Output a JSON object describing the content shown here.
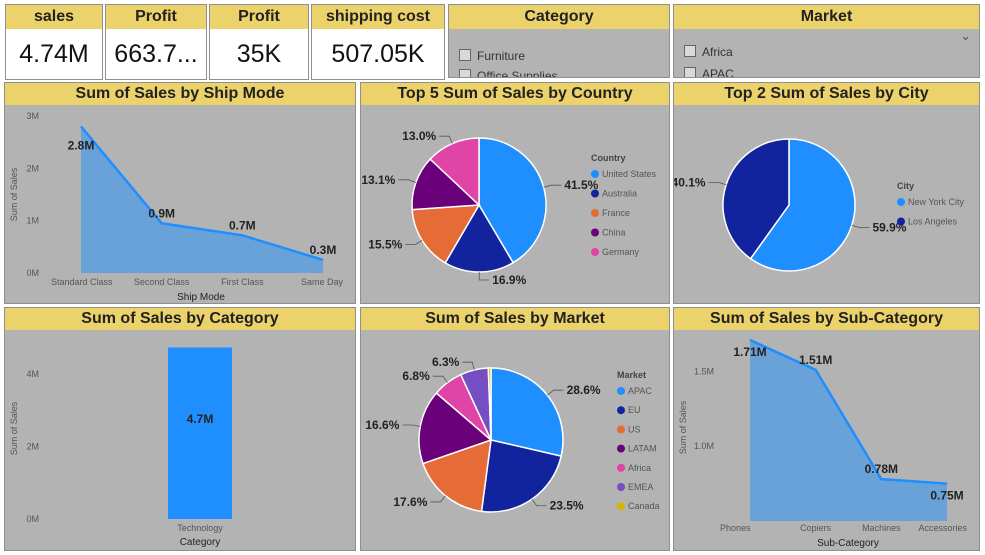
{
  "cards": [
    {
      "title": "sales",
      "value": "4.74M"
    },
    {
      "title": "Profit",
      "value": "663.7..."
    },
    {
      "title": "Profit",
      "value": "35K"
    },
    {
      "title": "shipping cost",
      "value": "507.05K"
    }
  ],
  "slicers": {
    "category": {
      "title": "Category",
      "items": [
        "Furniture",
        "Office Supplies"
      ]
    },
    "market": {
      "title": "Market",
      "items": [
        "Africa",
        "APAC"
      ]
    }
  },
  "panels": {
    "ship_mode": {
      "title": "Sum of Sales by Ship Mode"
    },
    "country": {
      "title": "Top 5 Sum of Sales by Country"
    },
    "city": {
      "title": "Top 2 Sum of Sales by City"
    },
    "category": {
      "title": "Sum of Sales by Category"
    },
    "market": {
      "title": "Sum of Sales by Market"
    },
    "subcategory": {
      "title": "Sum of Sales by Sub-Category"
    }
  },
  "chart_data": [
    {
      "type": "area",
      "title": "Sum of Sales by Ship Mode",
      "xlabel": "Ship Mode",
      "ylabel": "Sum of Sales",
      "categories": [
        "Standard Class",
        "Second Class",
        "First Class",
        "Same Day"
      ],
      "values": [
        2.8,
        0.95,
        0.72,
        0.25
      ],
      "data_labels": [
        "2.8M",
        "0.9M",
        "0.7M",
        "0.3M"
      ],
      "ylim": [
        0,
        3
      ],
      "yticks": [
        {
          "v": 0,
          "t": "0M"
        },
        {
          "v": 1,
          "t": "1M"
        },
        {
          "v": 2,
          "t": "2M"
        },
        {
          "v": 3,
          "t": "3M"
        }
      ],
      "color": "#1f8fff"
    },
    {
      "type": "pie",
      "title": "Top 5 Sum of Sales by Country",
      "legend_title": "Country",
      "slices": [
        {
          "name": "United States",
          "value": 41.5,
          "label": "41.5%",
          "color": "#1f8fff"
        },
        {
          "name": "Australia",
          "value": 16.9,
          "label": "16.9%",
          "color": "#12239e"
        },
        {
          "name": "France",
          "value": 15.5,
          "label": "15.5%",
          "color": "#e66c37"
        },
        {
          "name": "China",
          "value": 13.1,
          "label": "13.1%",
          "color": "#6b007b"
        },
        {
          "name": "Germany",
          "value": 13.0,
          "label": "13.0%",
          "color": "#e044a7"
        }
      ]
    },
    {
      "type": "pie",
      "title": "Top 2 Sum of Sales by City",
      "legend_title": "City",
      "slices": [
        {
          "name": "New York City",
          "value": 59.9,
          "label": "59.9%",
          "color": "#1f8fff"
        },
        {
          "name": "Los Angeles",
          "value": 40.1,
          "label": "40.1%",
          "color": "#12239e"
        }
      ]
    },
    {
      "type": "bar",
      "title": "Sum of Sales by Category",
      "xlabel": "Category",
      "ylabel": "Sum of Sales",
      "categories": [
        "Technology"
      ],
      "values": [
        4.74
      ],
      "data_labels": [
        "4.7M"
      ],
      "ylim": [
        0,
        5
      ],
      "yticks": [
        {
          "v": 0,
          "t": "0M"
        },
        {
          "v": 2,
          "t": "2M"
        },
        {
          "v": 4,
          "t": "4M"
        }
      ],
      "color": "#1f8fff"
    },
    {
      "type": "pie",
      "title": "Sum of Sales by Market",
      "legend_title": "Market",
      "slices": [
        {
          "name": "APAC",
          "value": 28.6,
          "label": "28.6%",
          "color": "#1f8fff"
        },
        {
          "name": "EU",
          "value": 23.5,
          "label": "23.5%",
          "color": "#12239e"
        },
        {
          "name": "US",
          "value": 17.6,
          "label": "17.6%",
          "color": "#e66c37"
        },
        {
          "name": "LATAM",
          "value": 16.6,
          "label": "16.6%",
          "color": "#6b007b"
        },
        {
          "name": "Africa",
          "value": 6.8,
          "label": "6.8%",
          "color": "#e044a7"
        },
        {
          "name": "EMEA",
          "value": 6.3,
          "label": "6.3%",
          "color": "#744ec2"
        },
        {
          "name": "Canada",
          "value": 0.6,
          "label": "",
          "color": "#d9b300"
        }
      ]
    },
    {
      "type": "area",
      "title": "Sum of Sales by Sub-Category",
      "xlabel": "Sub-Category",
      "ylabel": "Sum of Sales",
      "categories": [
        "Phones",
        "Copiers",
        "Machines",
        "Accessories"
      ],
      "values": [
        1.71,
        1.51,
        0.78,
        0.75
      ],
      "data_labels": [
        "1.71M",
        "1.51M",
        "0.78M",
        "0.75M"
      ],
      "ylim": [
        0.5,
        1.75
      ],
      "yticks": [
        {
          "v": 1.0,
          "t": "1.0M"
        },
        {
          "v": 1.5,
          "t": "1.5M"
        }
      ],
      "color": "#1f8fff"
    }
  ]
}
